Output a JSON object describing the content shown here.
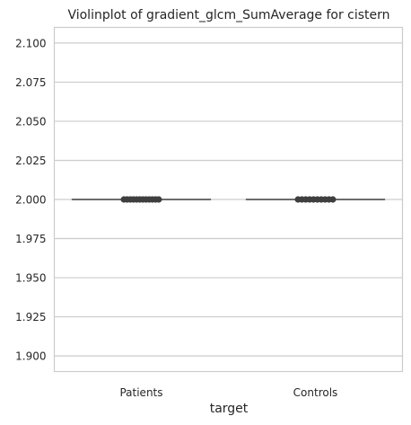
{
  "chart_data": {
    "type": "violin",
    "title": "Violinplot of gradient_glcm_SumAverage for cistern",
    "xlabel": "target",
    "ylabel": "",
    "categories": [
      "Patients",
      "Controls"
    ],
    "yticks": [
      "1.900",
      "1.925",
      "1.950",
      "1.975",
      "2.000",
      "2.025",
      "2.050",
      "2.075",
      "2.100"
    ],
    "ylim": [
      1.89,
      2.11
    ],
    "grid": true,
    "series": [
      {
        "category": "Patients",
        "median": 2.0,
        "points": [
          2.0,
          2.0,
          2.0,
          2.0,
          2.0,
          2.0,
          2.0,
          2.0,
          2.0,
          2.0,
          2.0,
          2.0
        ]
      },
      {
        "category": "Controls",
        "median": 2.0,
        "points": [
          2.0,
          2.0,
          2.0,
          2.0,
          2.0,
          2.0,
          2.0,
          2.0,
          2.0,
          2.0
        ]
      }
    ],
    "colors": {
      "grid": "#cccccc",
      "spine": "#cccccc",
      "line": "#3f3f3f",
      "point": "#3f3f3f"
    }
  }
}
